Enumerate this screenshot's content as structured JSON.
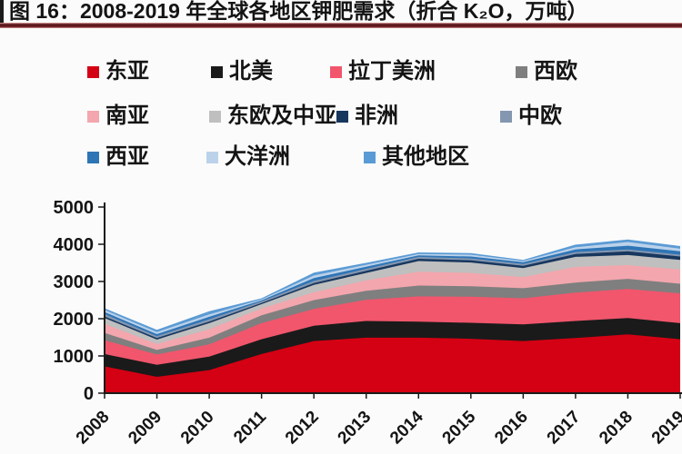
{
  "title": "图 16：2008-2019 年全球各地区钾肥需求（折合 K₂O，万吨）",
  "chart_data": {
    "type": "area",
    "stacked": true,
    "title": "2008-2019 年全球各地区钾肥需求（折合 K₂O，万吨）",
    "unit": "万吨 K₂O",
    "x": [
      "2008",
      "2009",
      "2010",
      "2011",
      "2012",
      "2013",
      "2014",
      "2015",
      "2016",
      "2017",
      "2018",
      "2019"
    ],
    "xlabel": "",
    "ylabel": "",
    "ylim": [
      0,
      5000
    ],
    "yticks": [
      0,
      1000,
      2000,
      3000,
      4000,
      5000
    ],
    "grid": false,
    "legend_position": "top",
    "series": [
      {
        "name": "东亚",
        "color": "#d40013",
        "values": [
          720,
          440,
          620,
          1050,
          1400,
          1490,
          1490,
          1460,
          1400,
          1480,
          1580,
          1450
        ]
      },
      {
        "name": "北美",
        "color": "#1a1a1a",
        "values": [
          330,
          320,
          360,
          400,
          410,
          450,
          430,
          430,
          450,
          460,
          440,
          430
        ]
      },
      {
        "name": "拉丁美洲",
        "color": "#f1566c",
        "values": [
          370,
          280,
          330,
          430,
          450,
          570,
          680,
          700,
          700,
          760,
          780,
          800
        ]
      },
      {
        "name": "西欧",
        "color": "#7f7f7f",
        "values": [
          200,
          120,
          180,
          210,
          240,
          240,
          290,
          280,
          270,
          270,
          270,
          260
        ]
      },
      {
        "name": "南亚",
        "color": "#f3a6ad",
        "values": [
          240,
          160,
          230,
          180,
          210,
          280,
          370,
          360,
          300,
          420,
          370,
          380
        ]
      },
      {
        "name": "东欧及中亚",
        "color": "#bfbfbf",
        "values": [
          160,
          120,
          160,
          120,
          200,
          200,
          290,
          280,
          240,
          270,
          270,
          260
        ]
      },
      {
        "name": "非洲",
        "color": "#17375e",
        "values": [
          40,
          40,
          45,
          35,
          45,
          55,
          60,
          60,
          60,
          80,
          100,
          90
        ]
      },
      {
        "name": "中欧",
        "color": "#8496b0",
        "values": [
          65,
          55,
          60,
          40,
          60,
          55,
          50,
          50,
          50,
          50,
          50,
          50
        ]
      },
      {
        "name": "西亚",
        "color": "#2e75b6",
        "values": [
          55,
          50,
          65,
          30,
          75,
          55,
          40,
          50,
          50,
          70,
          100,
          90
        ]
      },
      {
        "name": "大洋洲",
        "color": "#bcd2ea",
        "values": [
          55,
          55,
          65,
          25,
          70,
          55,
          40,
          50,
          30,
          60,
          100,
          70
        ]
      },
      {
        "name": "其他地区",
        "color": "#5b9bd5",
        "values": [
          45,
          60,
          85,
          30,
          80,
          50,
          40,
          40,
          30,
          70,
          70,
          70
        ]
      }
    ]
  }
}
